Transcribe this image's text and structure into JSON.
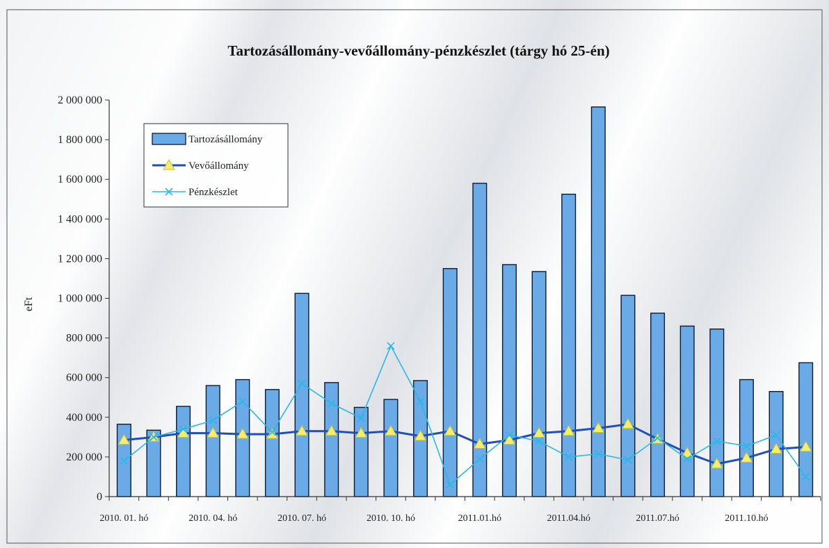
{
  "chart_data": {
    "type": "bar",
    "title": "Tartozásállomány-vevőállomány-pénzkészlet (tárgy hó 25-én)",
    "xlabel": "",
    "ylabel": "eFt",
    "ylim": [
      0,
      2000000
    ],
    "y_ticks": [
      "0",
      "200 000",
      "400 000",
      "600 000",
      "800 000",
      "1 000 000",
      "1 200 000",
      "1 400 000",
      "1 600 000",
      "1 800 000",
      "2 000 000"
    ],
    "x_tick_labels": [
      {
        "index": 0,
        "label": "2010. 01. hó"
      },
      {
        "index": 3,
        "label": "2010. 04. hó"
      },
      {
        "index": 6,
        "label": "2010. 07. hó"
      },
      {
        "index": 9,
        "label": "2010. 10. hó"
      },
      {
        "index": 12,
        "label": "2011.01.hó"
      },
      {
        "index": 15,
        "label": "2011.04.hó"
      },
      {
        "index": 18,
        "label": "2011.07.hó"
      },
      {
        "index": 21,
        "label": "2011.10.hó"
      }
    ],
    "n_categories": 24,
    "legend_position": "top-left",
    "grid": false,
    "series": [
      {
        "name": "Tartozásállomány",
        "type": "bar",
        "color": "#6aaae6",
        "values": [
          365000,
          335000,
          455000,
          560000,
          590000,
          540000,
          1025000,
          575000,
          450000,
          490000,
          585000,
          1150000,
          1580000,
          1170000,
          1135000,
          1525000,
          1965000,
          1015000,
          925000,
          860000,
          845000,
          590000,
          530000,
          675000
        ]
      },
      {
        "name": "Vevőállomány",
        "type": "line",
        "color": "#1f4fb8",
        "marker": "triangle",
        "marker_color": "#f4ee6a",
        "values": [
          285000,
          300000,
          320000,
          320000,
          315000,
          315000,
          330000,
          330000,
          320000,
          330000,
          305000,
          330000,
          265000,
          285000,
          320000,
          330000,
          345000,
          365000,
          290000,
          220000,
          165000,
          195000,
          240000,
          250000
        ]
      },
      {
        "name": "Pénzkészlet",
        "type": "line",
        "color": "#29b8e8",
        "marker": "x",
        "values": [
          180000,
          300000,
          340000,
          385000,
          480000,
          325000,
          570000,
          470000,
          395000,
          760000,
          480000,
          60000,
          190000,
          310000,
          280000,
          200000,
          215000,
          185000,
          295000,
          190000,
          280000,
          255000,
          310000,
          100000
        ]
      }
    ]
  }
}
